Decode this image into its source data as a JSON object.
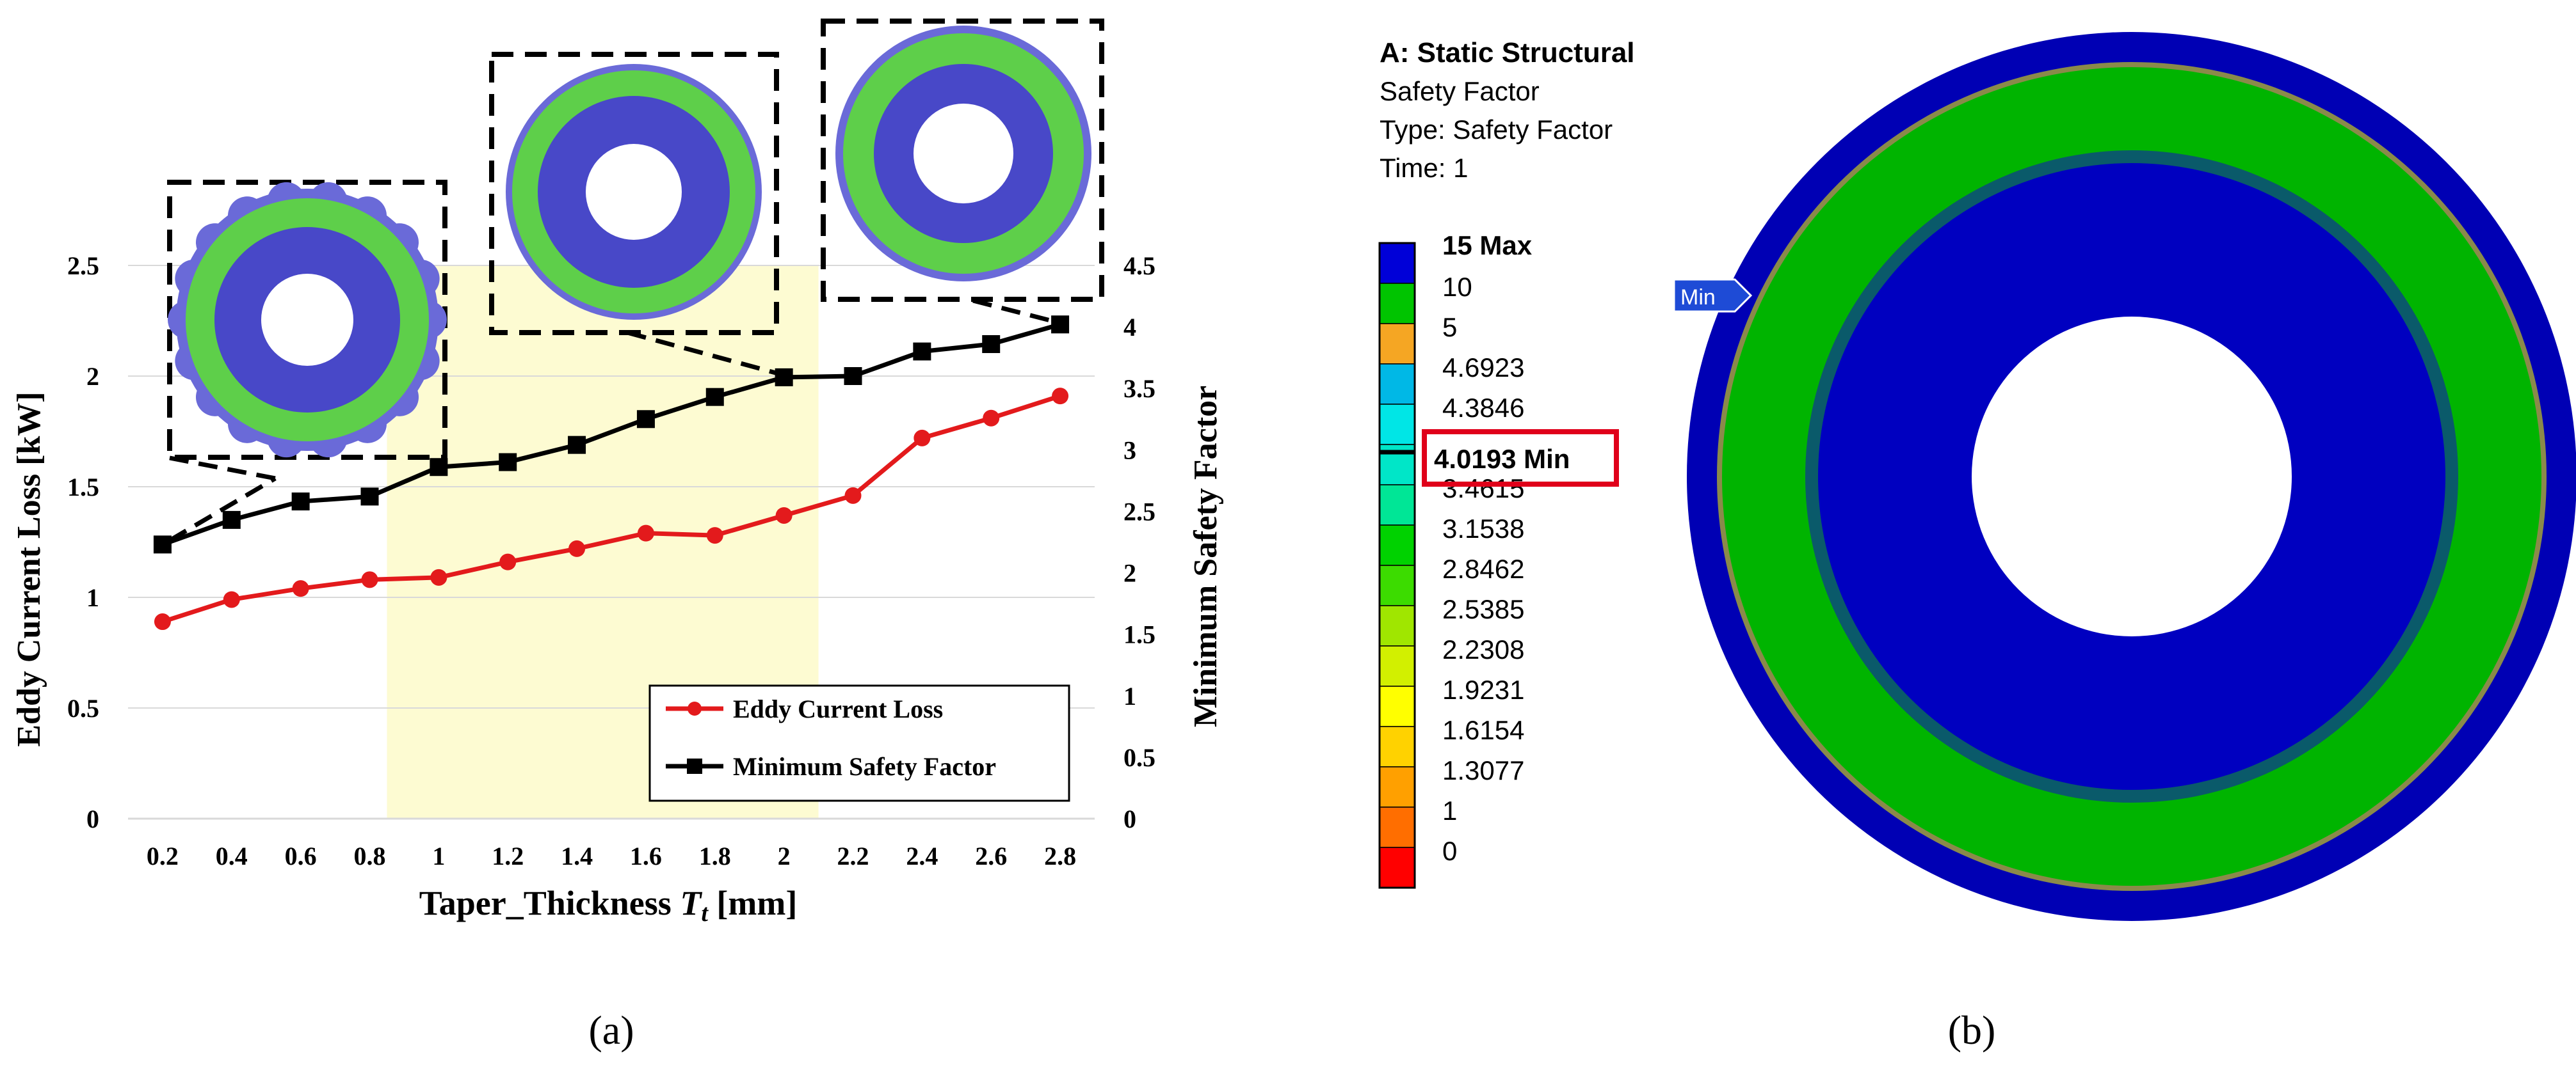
{
  "chart_data": {
    "type": "line",
    "title": "",
    "xlabel": "Taper_Thickness T_t [mm]",
    "xlabel_main": "Taper_Thickness ",
    "xlabel_symbol": "T",
    "xlabel_subscript": "t",
    "xlabel_unit": " [mm]",
    "ylabel_left": "Eddy Current Loss [kW]",
    "ylabel_right": "Minimum Safety Factor",
    "ylim_left": [
      0,
      2.5
    ],
    "ylim_right": [
      0,
      4.5
    ],
    "yticks_left": [
      "0",
      "0.5",
      "1",
      "1.5",
      "2",
      "2.5"
    ],
    "yticks_right": [
      "0",
      "0.5",
      "1",
      "1.5",
      "2",
      "2.5",
      "3",
      "3.5",
      "4",
      "4.5"
    ],
    "categories": [
      "0.2",
      "0.4",
      "0.6",
      "0.8",
      "1",
      "1.2",
      "1.4",
      "1.6",
      "1.8",
      "2",
      "2.2",
      "2.4",
      "2.6",
      "2.8"
    ],
    "highlight_range": [
      0.85,
      2.1
    ],
    "grid": true,
    "legend_position": "bottom-right",
    "series": [
      {
        "name": "Eddy Current Loss",
        "axis": "left",
        "marker": "circle",
        "color": "#e31a1c",
        "values": [
          0.89,
          0.99,
          1.04,
          1.08,
          1.09,
          1.16,
          1.22,
          1.29,
          1.28,
          1.37,
          1.46,
          1.72,
          1.81,
          1.91
        ]
      },
      {
        "name": "Minimum Safety Factor",
        "axis": "right",
        "marker": "square",
        "color": "#000000",
        "values": [
          2.23,
          2.43,
          2.58,
          2.62,
          2.86,
          2.9,
          3.04,
          3.25,
          3.43,
          3.59,
          3.6,
          3.8,
          3.86,
          4.02
        ]
      }
    ]
  },
  "legend_panel": {
    "title": "A: Static Structural",
    "subtitle": "Safety Factor",
    "type_line": "Type: Safety Factor",
    "time_line": "Time: 1",
    "min_value_label": "4.0193 Min",
    "bands": [
      {
        "label": "15 Max",
        "color": "#0000d8"
      },
      {
        "label": "10",
        "color": "#00c400"
      },
      {
        "label": "5",
        "color": "#f5a623"
      },
      {
        "label": "4.6923",
        "color": "#00b8e6"
      },
      {
        "label": "4.3846",
        "color": "#00e6e6"
      },
      {
        "label": "",
        "color": "#00e6c8"
      },
      {
        "label": "3.4615",
        "color": "#00e696"
      },
      {
        "label": "3.1538",
        "color": "#00d200"
      },
      {
        "label": "2.8462",
        "color": "#3cdc00"
      },
      {
        "label": "2.5385",
        "color": "#a0e600"
      },
      {
        "label": "2.2308",
        "color": "#d2f000"
      },
      {
        "label": "1.9231",
        "color": "#ffff00"
      },
      {
        "label": "1.6154",
        "color": "#ffd200"
      },
      {
        "label": "1.3077",
        "color": "#ffa000"
      },
      {
        "label": "1",
        "color": "#ff6e00"
      },
      {
        "label": "0",
        "color": "#ff0000"
      }
    ],
    "min_marker_label": "Min"
  },
  "captions": {
    "a": "(a)",
    "b": "(b)"
  },
  "colors": {
    "highlight": "#fdfbd2",
    "ring_outer": "#0000b4",
    "ring_green": "#00b400",
    "ring_blue": "#0000c0",
    "inset_green": "#5ecf4a",
    "inset_blue": "#4848c8"
  }
}
